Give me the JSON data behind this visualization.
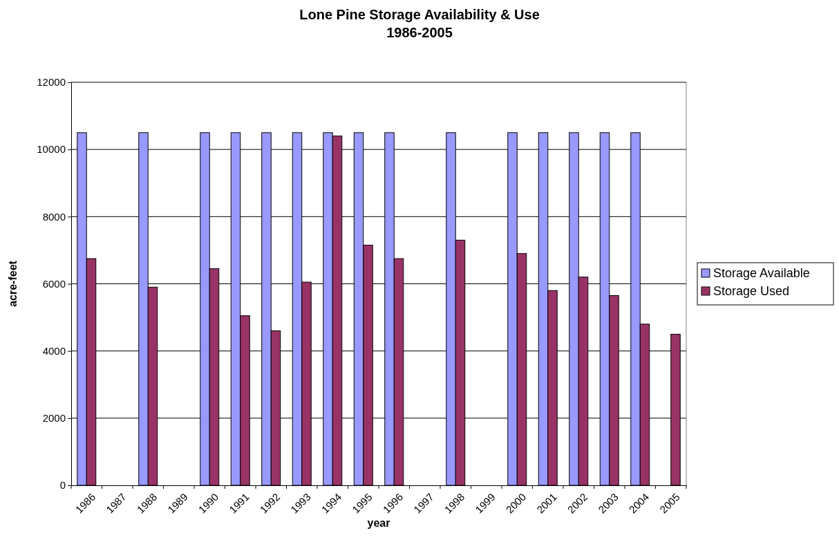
{
  "chart_data": {
    "type": "bar",
    "title": "Lone Pine Storage Availability & Use",
    "subtitle": "1986-2005",
    "xlabel": "year",
    "ylabel": "acre-feet",
    "categories": [
      "1986",
      "1987",
      "1988",
      "1989",
      "1990",
      "1991",
      "1992",
      "1993",
      "1994",
      "1995",
      "1996",
      "1997",
      "1998",
      "1999",
      "2000",
      "2001",
      "2002",
      "2003",
      "2004",
      "2005"
    ],
    "series": [
      {
        "name": "Storage Available",
        "color": "#9999ff",
        "values": [
          10500,
          null,
          10500,
          null,
          10500,
          10500,
          10500,
          10500,
          10500,
          10500,
          10500,
          null,
          10500,
          null,
          10500,
          10500,
          10500,
          10500,
          10500,
          null
        ]
      },
      {
        "name": "Storage Used",
        "color": "#993366",
        "values": [
          6750,
          null,
          5900,
          null,
          6450,
          5050,
          4600,
          6050,
          10400,
          7150,
          6750,
          null,
          7300,
          null,
          6900,
          5800,
          6200,
          5650,
          4800,
          4500
        ]
      }
    ],
    "ylim": [
      0,
      12000
    ],
    "yticks": [
      0,
      2000,
      4000,
      6000,
      8000,
      10000,
      12000
    ],
    "grid": "y",
    "legend": "right"
  }
}
